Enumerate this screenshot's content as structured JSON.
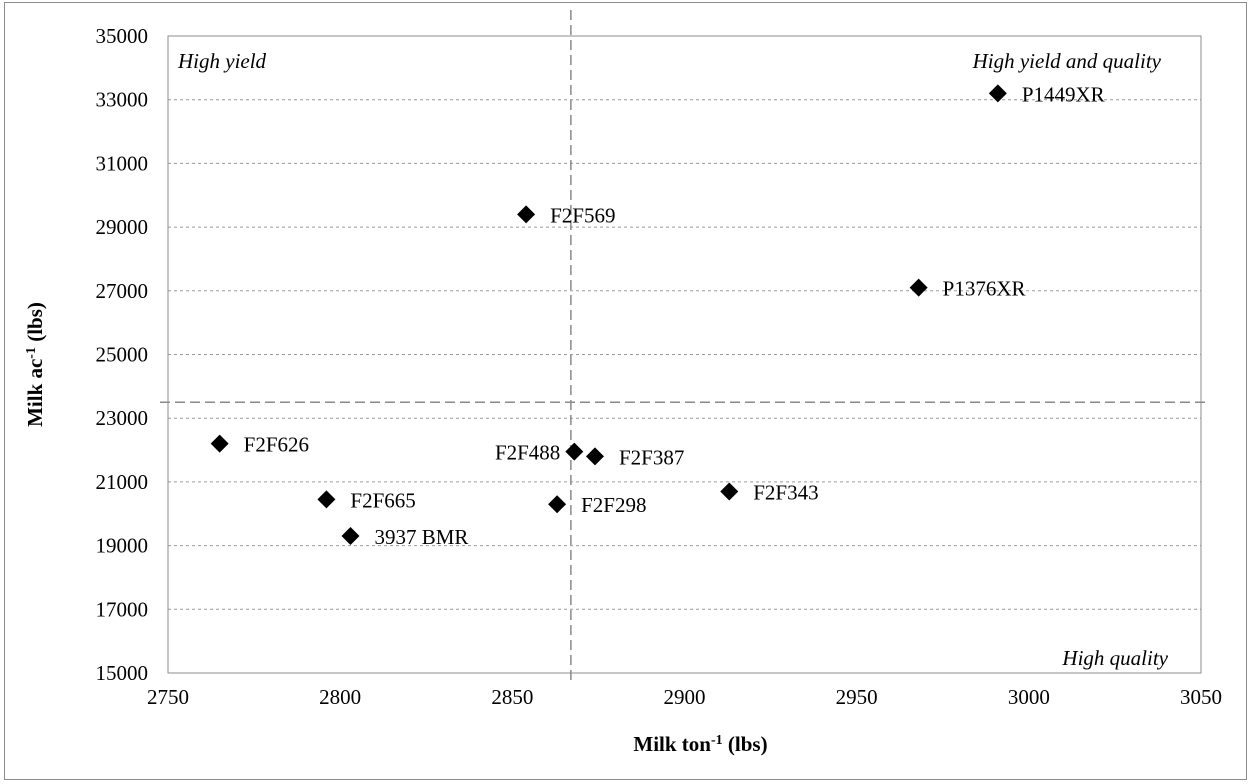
{
  "chart_data": {
    "type": "scatter",
    "xlabel": {
      "main": "Milk ton",
      "sup": "-1",
      "unit": " (lbs)"
    },
    "ylabel": {
      "main": "Milk ac",
      "sup": "-1",
      "unit": " (lbs)"
    },
    "xlim": [
      2750,
      3050
    ],
    "ylim": [
      15000,
      35000
    ],
    "xticks": [
      2750,
      2800,
      2850,
      2900,
      2950,
      3000,
      3050
    ],
    "yticks": [
      15000,
      17000,
      19000,
      21000,
      23000,
      25000,
      27000,
      29000,
      31000,
      33000,
      35000
    ],
    "grid": "horizontal dashed",
    "reference_lines": {
      "x": 2867,
      "y": 23500
    },
    "quadrant_labels": {
      "top_left": "High yield",
      "top_right": "High yield and quality",
      "bottom_right": "High quality"
    },
    "points": [
      {
        "label": "P1449XR",
        "x": 2991,
        "y": 33200,
        "label_pos": "right"
      },
      {
        "label": "F2F569",
        "x": 2854,
        "y": 29400,
        "label_pos": "right"
      },
      {
        "label": "P1376XR",
        "x": 2968,
        "y": 27100,
        "label_pos": "right"
      },
      {
        "label": "F2F626",
        "x": 2765,
        "y": 22200,
        "label_pos": "right"
      },
      {
        "label": "F2F488",
        "x": 2868,
        "y": 21950,
        "label_pos": "left"
      },
      {
        "label": "F2F387",
        "x": 2874,
        "y": 21800,
        "label_pos": "right"
      },
      {
        "label": "F2F343",
        "x": 2913,
        "y": 20700,
        "label_pos": "right"
      },
      {
        "label": "F2F665",
        "x": 2796,
        "y": 20450,
        "label_pos": "right"
      },
      {
        "label": "F2F298",
        "x": 2863,
        "y": 20300,
        "label_pos": "right"
      },
      {
        "label": "3937 BMR",
        "x": 2803,
        "y": 19300,
        "label_pos": "right"
      }
    ],
    "marker": "diamond",
    "marker_color": "#000000"
  }
}
